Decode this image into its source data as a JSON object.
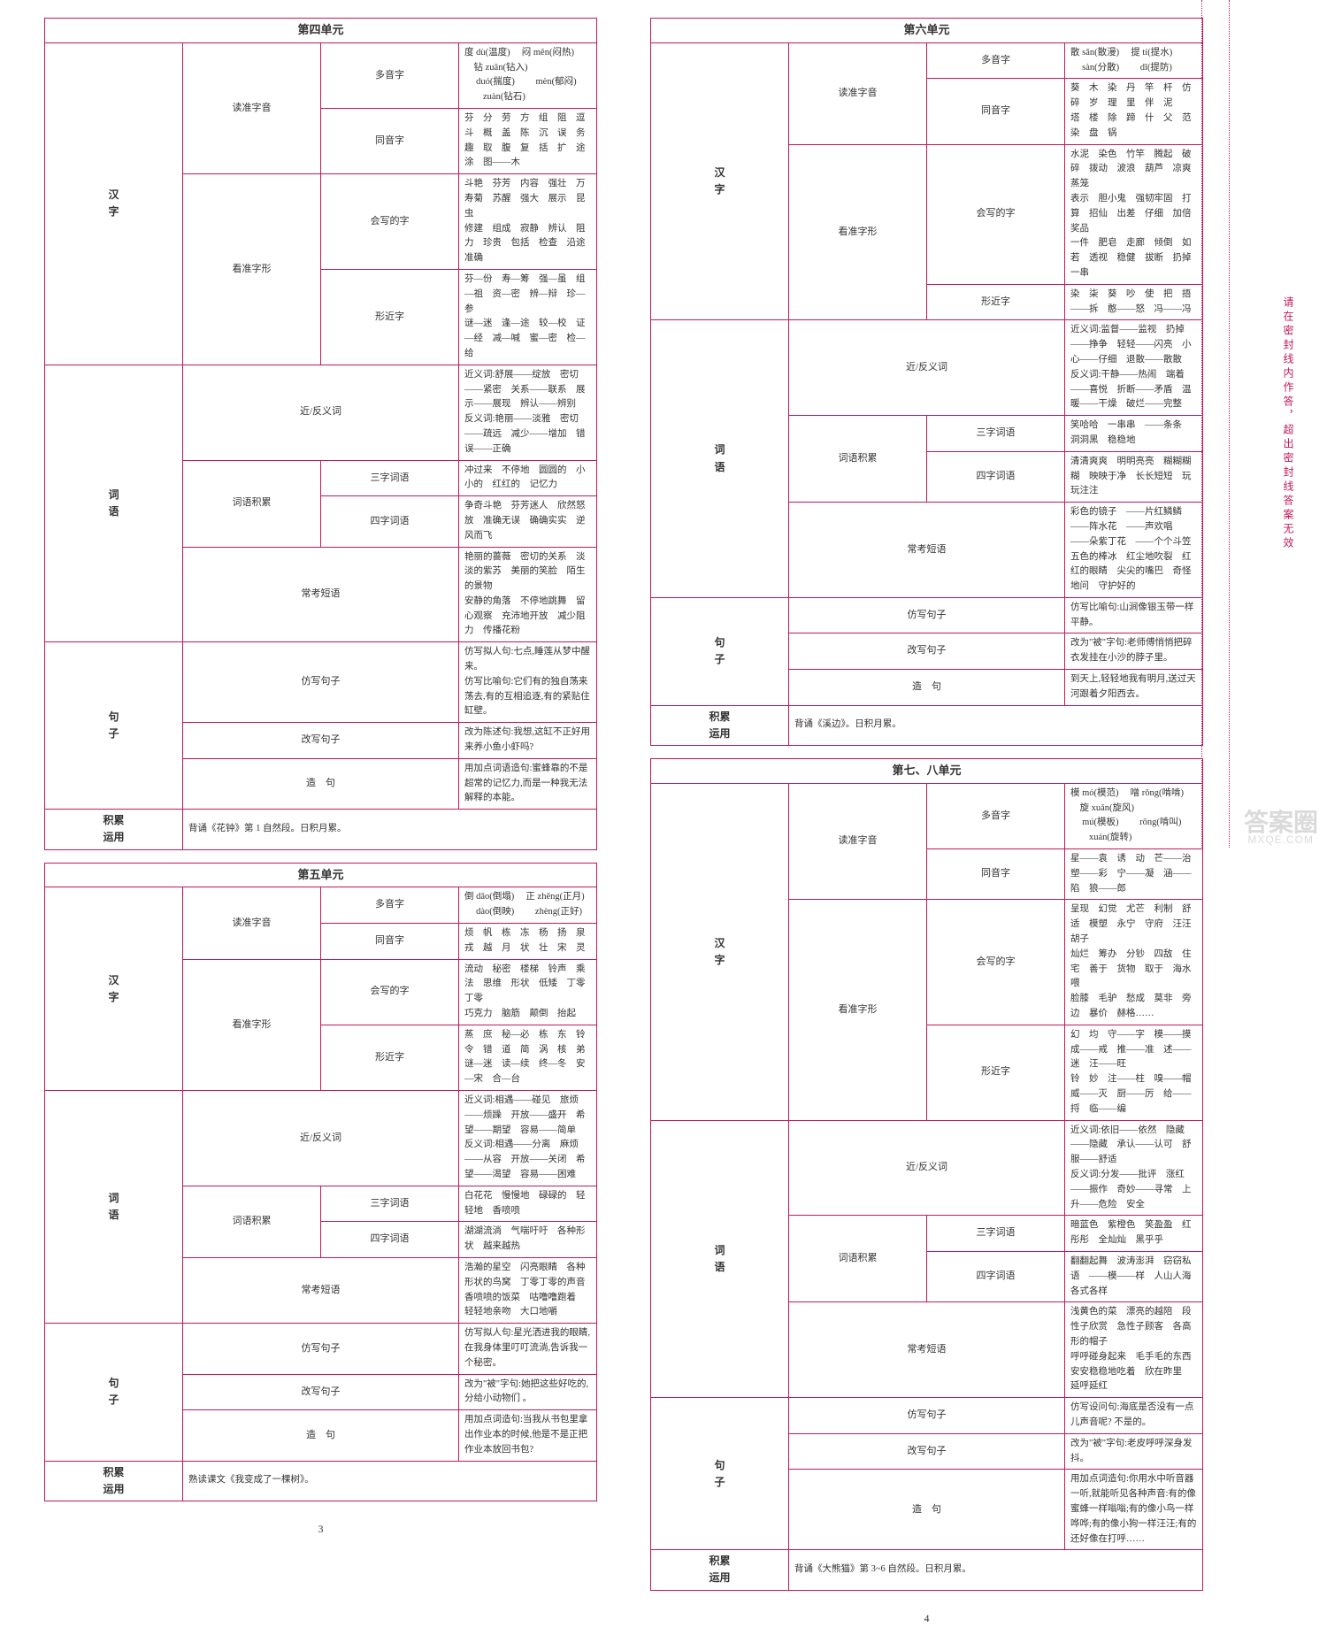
{
  "sideText": "请在密封线内作答，超出密封线答案无效",
  "watermark": "答案圈",
  "watermarkSub": "MXQE.COM",
  "pageLeftNum": "3",
  "pageRightNum": "4",
  "unit4": {
    "title": "第四单元",
    "hanzi": {
      "duyin": {
        "label": "读准字音",
        "duoyin": {
          "label": "多音字",
          "content": "度 dù(温度)  　闷 mēn(闷热)  　钻 zuān(钻入)\n　 duó(揣度)  　　mèn(郁闷)  　　zuàn(钻石)"
        },
        "tongyin": {
          "label": "同音字",
          "content": "芬　分　劳　方　组　阻　逗　斗　概　盖　陈　沉　误　务\n趣　取　腹　复　括　扩　途　涂　图——木"
        }
      },
      "zixing": {
        "label": "看准字形",
        "huixie": {
          "label": "会写的字",
          "content": "斗艳　芬芳　内容　强壮　万寿菊　苏醒　强大　展示　昆虫\n修建　组成　寂静　辨认　阻力　珍贵　包括　检查　沿途　准确"
        },
        "xingjin": {
          "label": "形近字",
          "content": "芬—份　寿—筹　强—虽　组—祖　资—密　辨—辩　珍—参\n谜—迷　逢—途　较—校　证—经　减—喊　蜜—密　检—给"
        }
      }
    },
    "ciyu": {
      "label": "词语",
      "jinfan": {
        "label": "近/反义词",
        "content": "近义词:舒展——绽放　密切——紧密　关系——联系　展示——展现　辨认——辨别\n反义词:艳丽——淡雅　密切——疏远　减少——增加　错误——正确"
      },
      "cyjl": {
        "label": "词语积累",
        "three": {
          "label": "三字词语",
          "content": "冲过来　不停地　圆圆的　小小的　红红的　记忆力"
        },
        "four": {
          "label": "四字词语",
          "content": "争奇斗艳　芬芳迷人　欣然怒放　准确无误　确确实实　逆风而飞"
        }
      },
      "changkao": {
        "label": "常考短语",
        "content": "艳丽的蔷薇　密切的关系　淡淡的紫苏　美丽的笑脸　陌生的景物\n安静的角落　不停地跳舞　留心观察　充沛地开放　减少阻力　传播花粉"
      }
    },
    "juzhi": {
      "label": "句子",
      "fangxie": {
        "label": "仿写句子",
        "content": "仿写拟人句:七点,睡莲从梦中醒来。\n仿写比喻句:它们有的独自荡来荡去,有的互相追逐,有的紧贴住缸壁。"
      },
      "gaixie": {
        "label": "改写句子",
        "content": "改为陈述句:我想,这缸不正好用来养小鱼小虾吗?"
      },
      "zaoju": {
        "label": "造　句",
        "content": "用加点词语造句:蜜蜂靠的不是超常的记忆力,而是一种我无法解释的本能。"
      }
    },
    "jileiyy": {
      "label": "积累\n运用",
      "content": "背诵《花钟》第 1 自然段。日积月累。"
    }
  },
  "unit5": {
    "title": "第五单元",
    "hanzi": {
      "duyin": {
        "label": "读准字音",
        "duoyin": {
          "label": "多音字",
          "content": "倒 dǎo(倒塌)  　正 zhēng(正月)\n　 dào(倒映)  　　zhèng(正好)"
        },
        "tongyin": {
          "label": "同音字",
          "content": "烦　帆　栋　冻　杨　扬　泉　戎　越　月　状　壮　宋　灵"
        }
      },
      "zixing": {
        "label": "看准字形",
        "huixie": {
          "label": "会写的字",
          "content": "流动　秘密　楼梯　铃声　乘法　思维　形状　低矮　丁零丁零\n巧克力　脑筋　颠倒　抬起"
        },
        "xingjin": {
          "label": "形近字",
          "content": "蒸　庶　秘—必　栋　东　铃　令　错　道　简　涡　核　弟\n谜—迷　读—续　终—冬　安—宋　合—台"
        }
      }
    },
    "ciyu": {
      "label": "词语",
      "jinfan": {
        "label": "近/反义词",
        "content": "近义词:相遇——碰见　旅烦——烦躁　开放——盛开　希望——期望　容易——简单\n反义词:相遇——分离　麻烦——从容　开放——关闭　希望——渴望　容易——困难"
      },
      "cyjl": {
        "label": "词语积累",
        "three": {
          "label": "三字词语",
          "content": "白花花　慢慢地　碌碌的　轻轻地　香喷喷"
        },
        "four": {
          "label": "四字词语",
          "content": "湖湖流淌　气喘吁吁　各种形状　越来越热"
        }
      },
      "changkao": {
        "label": "常考短语",
        "content": "浩瀚的星空　闪亮眼睛　各种形状的鸟窝　丁零丁零的声音\n香喷喷的饭菜　咕噜噜跑着　轻轻地亲吻　大口地嚼"
      }
    },
    "juzhi": {
      "label": "句子",
      "fangxie": {
        "label": "仿写句子",
        "content": "仿写拟人句:星光洒进我的眼睛,在我身体里叮叮流淌,告诉我一个秘密。"
      },
      "gaixie": {
        "label": "改写句子",
        "content": "改为\"被\"字句:她把这些好吃的,分给小动物们 。"
      },
      "zaoju": {
        "label": "造　句",
        "content": "用加点词造句:当我从书包里拿出作业本的时候,他是不是正把作业本放回书包?"
      }
    },
    "jileiyy": {
      "label": "积累\n运用",
      "content": "熟读课文《我变成了一棵树》。"
    }
  },
  "unit6": {
    "title": "第六单元",
    "hanzi": {
      "duyin": {
        "label": "读准字音",
        "duoyin": {
          "label": "多音字",
          "content": "散 sǎn(散漫)  　提 tí(提水)\n　 sàn(分散)  　　dī(提防)"
        },
        "tongyin": {
          "label": "同音字",
          "content": "葵　木　染　丹　竿　杆　仿　碎　岁　理　里　伴　泥\n塔　楼　除　蹄　什　父　范　染　盘　锅"
        }
      },
      "zixing": {
        "label": "看准字形",
        "huixie": {
          "label": "会写的字",
          "content": "水泥　染色　竹竿　腾起　破碎　拨动　波浪　葫芦　凉爽　蒸笼\n表示　胆小鬼　强韧牢固　打算　招仙　出差　仔细　加倍　奖品\n一件　肥皂　走廊　倾倒　如若　透视　稳健　拔断　扔掉　一串"
        },
        "xingjin": {
          "label": "形近字",
          "content": "染　柒　葵　吵　使　把　捂——拆　憨——怒　冯——冯"
        }
      }
    },
    "ciyu": {
      "label": "词语",
      "jinfan": {
        "label": "近/反义词",
        "content": "近义词:监督——监视　扔掉——挣争　轻轻——闪亮　小心——仔细　退散——散散\n反义词:干静——热闹　端着——喜悦　折断——矛盾　温暖——干燥　破烂——完整"
      },
      "cyjl": {
        "label": "词语积累",
        "three": {
          "label": "三字词语",
          "content": "笑哈哈　一串串　——条条　洞洞黑　稳稳地"
        },
        "four": {
          "label": "四字词语",
          "content": "清清爽爽　明明亮亮　糊糊糊糊　映映于净　长长短短　玩玩注注"
        }
      },
      "changkao": {
        "label": "常考短语",
        "content": "彩色的镜子　——片红鳞鳞　——阵水花　——声欢唱　——朵紫丁花　——个个斗笠\n五色的棒冰　红尘地吹裂　红红的眼睛　尖尖的嘴巴　奇怪地问　守护好的"
      }
    },
    "juzhi": {
      "label": "句子",
      "fangxie": {
        "label": "仿写句子",
        "content": "仿写比喻句:山涧像银玉带一样平静。"
      },
      "gaixie": {
        "label": "改写句子",
        "content": "改为\"被\"字句:老师傅悄悄把碎衣发挂在小沙的脖子里。"
      },
      "zaoju": {
        "label": "造　句",
        "content": "到天上,轻轻地我有明月,送过天河跟着夕阳西去。"
      }
    },
    "jileiyy": {
      "label": "积累\n运用",
      "content": "背诵《溪边》。日积月累。"
    }
  },
  "unit78": {
    "title": "第七、八单元",
    "hanzi": {
      "duyin": {
        "label": "读准字音",
        "duoyin": {
          "label": "多音字",
          "content": "模 mó(模范)  　噌 rǒng(啃啃)  　旋 xuǎn(旋风)\n　 mú(模板)  　　rōng(啃叫)  　　xuán(旋转)"
        },
        "tongyin": {
          "label": "同音字",
          "content": "星——袁　诱　动　芒——治　塑——彩　宁——凝　涵——陷　狼——郎"
        }
      },
      "zixing": {
        "label": "看准字形",
        "huixie": {
          "label": "会写的字",
          "content": "呈现　幻觉　尤芒　利制　舒适　模塑　永宁　守府　汪汪　胡子\n灿烂　筹办　分钞　四敌　住宅　善于　货物　取于　海水　喂\n脸膝　毛驴　愁成　莫非　旁边　暴价　赫格……"
        },
        "xingjin": {
          "label": "形近字",
          "content": "幻　均　守——字　模——摸　成——戒　推——准　述——迷　汪——旺\n铃　妙　注——柱　嗅——帽　威——灭　厨——厉　给——捋　临——编"
        }
      }
    },
    "ciyu": {
      "label": "词语",
      "jinfan": {
        "label": "近/反义词",
        "content": "近义词:依旧——依然　隐藏——隐藏　承认——认可　舒服——舒适\n反义词:分发——批评　涨红——振作　奇妙——寻常　上升——危险　安全"
      },
      "cyjl": {
        "label": "词语积累",
        "three": {
          "label": "三字词语",
          "content": "暗蓝色　紫橙色　笑盈盈　红彤彤　全灿灿　黑乎乎"
        },
        "four": {
          "label": "四字词语",
          "content": "翻翻起舞　波涛澎湃　窃窃私语　——模——样　人山人海　各式各样"
        }
      },
      "changkao": {
        "label": "常考短语",
        "content": "浅黄色的菜　漂亮的越陪　段性子欣赏　急性子顾客　各高形的帽子\n呼呼碰身起来　毛手毛的东西　安安稳稳地吃着　欣在昨里　延呼延红"
      }
    },
    "juzhi": {
      "label": "句子",
      "fangxie": {
        "label": "仿写句子",
        "content": "仿写设问句:海底是否没有一点儿声音呢? 不是的。"
      },
      "gaixie": {
        "label": "改写句子",
        "content": "改为\"被\"字句:老皮呼呼深身发抖。"
      },
      "zaoju": {
        "label": "造　句",
        "content": "用加点词造句:你用水中听音器一听,就能听见各种声音:有的像蜜蜂一样嗡嗡;有的像小鸟一样哗哗;有的像小狗一样汪汪;有的还好像在打呼……"
      }
    },
    "jileiyy": {
      "label": "积累\n运用",
      "content": "背诵《大熊猫》第 3~6 自然段。日积月累。"
    }
  }
}
